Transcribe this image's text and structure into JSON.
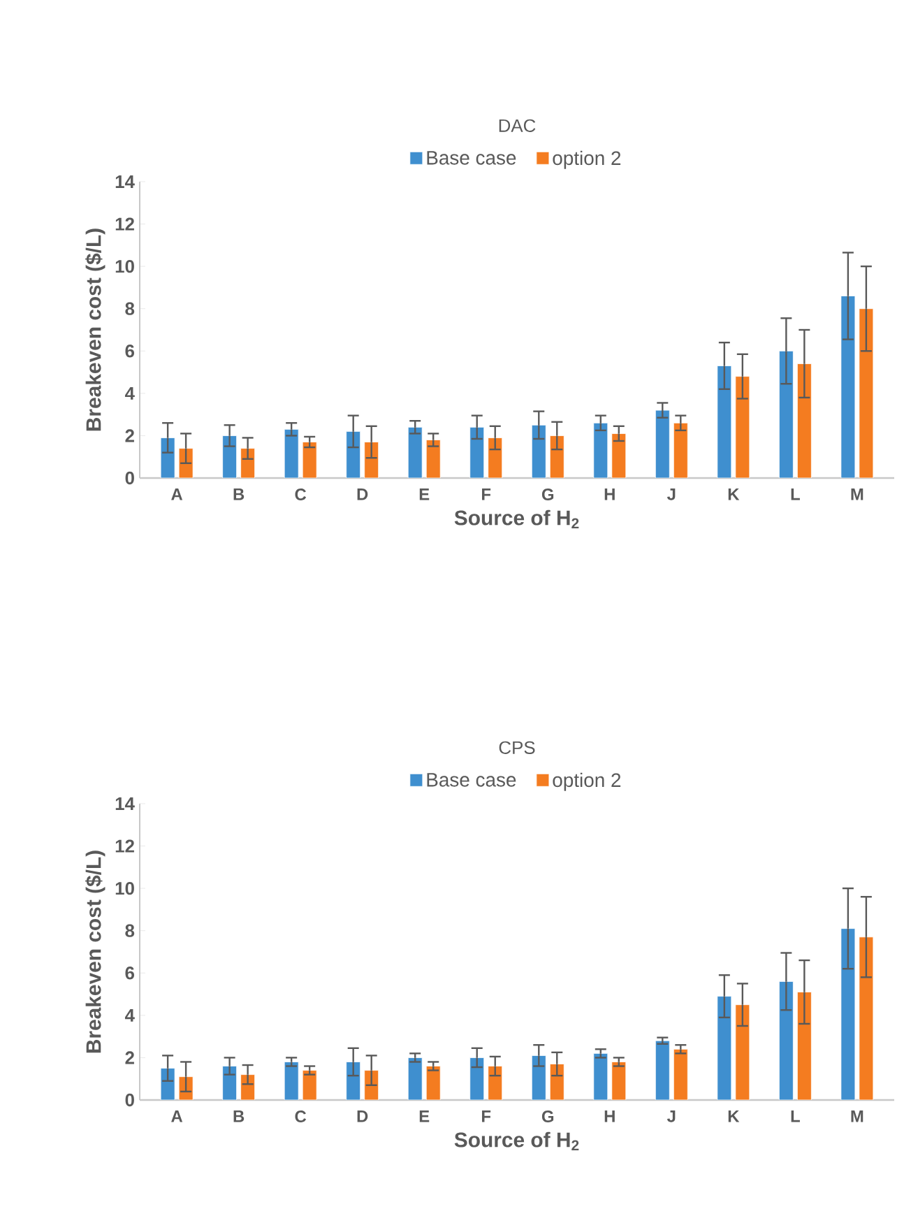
{
  "chart_data": [
    {
      "type": "bar",
      "title": "DAC",
      "xlabel": "Source of H$_{2}$",
      "ylabel": "Breakeven cost ($/L)",
      "categories": [
        "A",
        "B",
        "C",
        "D",
        "E",
        "F",
        "G",
        "H",
        "J",
        "K",
        "L",
        "M"
      ],
      "ylim": [
        0,
        14
      ],
      "yticks": [
        0,
        2,
        4,
        6,
        8,
        10,
        12,
        14
      ],
      "legend": "top",
      "grid": false,
      "series": [
        {
          "name": "Base case",
          "color": "#3f8fcf",
          "values": [
            1.9,
            2.0,
            2.3,
            2.2,
            2.4,
            2.4,
            2.5,
            2.6,
            3.2,
            5.3,
            6.0,
            8.6
          ],
          "errors": [
            0.7,
            0.5,
            0.3,
            0.75,
            0.3,
            0.55,
            0.65,
            0.35,
            0.35,
            1.1,
            1.55,
            2.05
          ]
        },
        {
          "name": "option 2",
          "color": "#f47c20",
          "values": [
            1.4,
            1.4,
            1.7,
            1.7,
            1.8,
            1.9,
            2.0,
            2.1,
            2.6,
            4.8,
            5.4,
            8.0
          ],
          "errors": [
            0.7,
            0.5,
            0.25,
            0.75,
            0.3,
            0.55,
            0.65,
            0.35,
            0.35,
            1.05,
            1.6,
            2.0
          ]
        }
      ]
    },
    {
      "type": "bar",
      "title": "CPS",
      "xlabel": "Source of H$_{2}$",
      "ylabel": "Breakeven cost ($/L)",
      "categories": [
        "A",
        "B",
        "C",
        "D",
        "E",
        "F",
        "G",
        "H",
        "J",
        "K",
        "L",
        "M"
      ],
      "ylim": [
        0,
        14
      ],
      "yticks": [
        0,
        2,
        4,
        6,
        8,
        10,
        12,
        14
      ],
      "legend": "top",
      "grid": false,
      "series": [
        {
          "name": "Base case",
          "color": "#3f8fcf",
          "values": [
            1.5,
            1.6,
            1.8,
            1.8,
            2.0,
            2.0,
            2.1,
            2.2,
            2.8,
            4.9,
            5.6,
            8.1
          ],
          "errors": [
            0.6,
            0.4,
            0.2,
            0.65,
            0.2,
            0.45,
            0.5,
            0.2,
            0.15,
            1.0,
            1.35,
            1.9
          ]
        },
        {
          "name": "option 2",
          "color": "#f47c20",
          "values": [
            1.1,
            1.2,
            1.4,
            1.4,
            1.6,
            1.6,
            1.7,
            1.8,
            2.4,
            4.5,
            5.1,
            7.7
          ],
          "errors": [
            0.7,
            0.45,
            0.2,
            0.7,
            0.2,
            0.45,
            0.55,
            0.2,
            0.2,
            1.0,
            1.5,
            1.9
          ]
        }
      ]
    }
  ]
}
